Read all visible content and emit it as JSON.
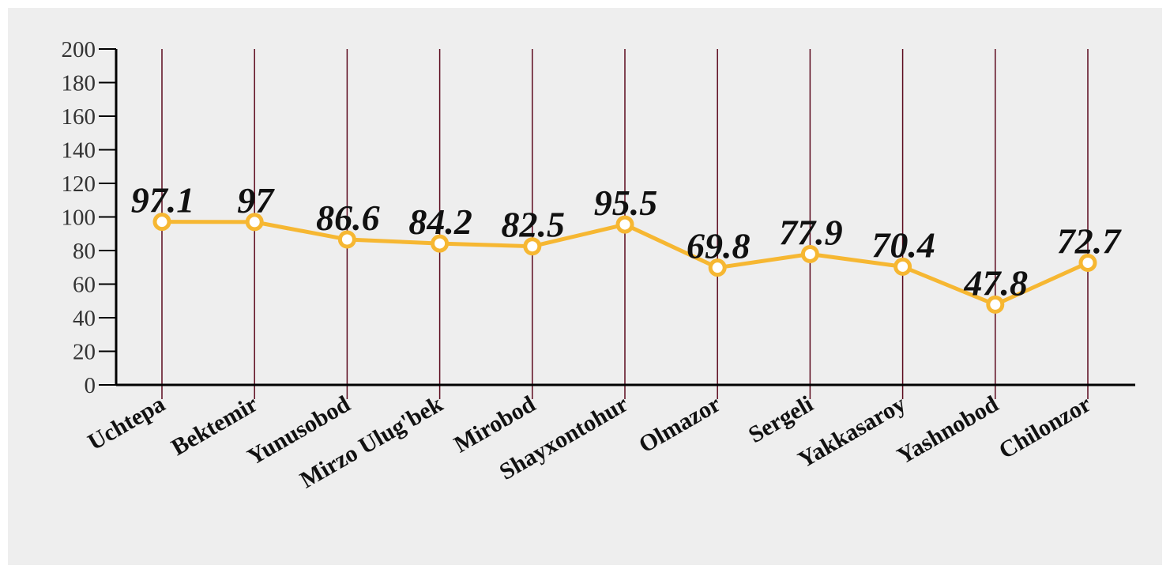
{
  "chart_data": {
    "type": "line",
    "title": "",
    "xlabel": "",
    "ylabel": "",
    "categories": [
      "Uchtepa",
      "Bektemir",
      "Yunusobod",
      "Mirzo Ulug'bek",
      "Mirobod",
      "Shayxontohur",
      "Olmazor",
      "Sergeli",
      "Yakkasaroy",
      "Yashnobod",
      "Chilonzor"
    ],
    "series": [
      {
        "values": [
          97.1,
          97,
          86.6,
          84.2,
          82.5,
          95.5,
          69.8,
          77.9,
          70.4,
          47.8,
          72.7
        ],
        "value_labels": [
          "97.1",
          "97",
          "86.6",
          "84.2",
          "82.5",
          "95.5",
          "69.8",
          "77.9",
          "70.4",
          "47.8",
          "72.7"
        ],
        "color": "#f6b732"
      }
    ],
    "ylim": [
      0,
      200
    ],
    "yticks": [
      "0",
      "20",
      "40",
      "60",
      "80",
      "100",
      "120",
      "140",
      "160",
      "180",
      "200"
    ],
    "grid": "vertical lines at categories",
    "grid_color": "#5c0a1e",
    "legend": "none"
  }
}
